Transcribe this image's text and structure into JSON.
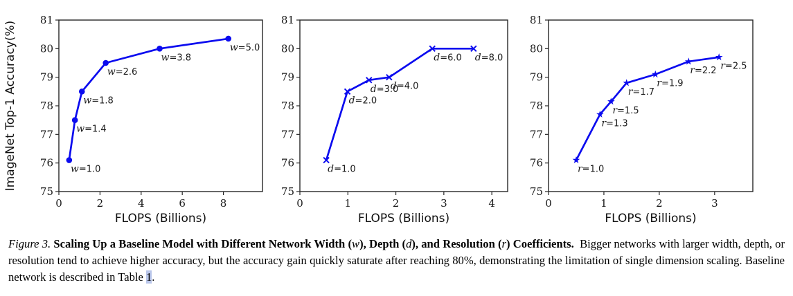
{
  "style": {
    "line_color": "#0b0bef",
    "axis_color": "#262626",
    "text_color": "#1a1a1a",
    "link_highlight": "#b9c6ea"
  },
  "chart_data": [
    {
      "id": "width-scaling",
      "type": "line",
      "coeff_letter": "w",
      "marker": "circle",
      "title": "",
      "xlabel": "FLOPS (Billions)",
      "ylabel": "ImageNet Top-1 Accuracy(%)",
      "xlim": [
        0,
        9.9
      ],
      "ylim": [
        75,
        81
      ],
      "xticks": [
        0,
        2,
        4,
        6,
        8
      ],
      "yticks": [
        75,
        76,
        77,
        78,
        79,
        80,
        81
      ],
      "grid": false,
      "points": [
        {
          "x": 0.5,
          "y": 76.1,
          "coeff_value": "1.0"
        },
        {
          "x": 0.78,
          "y": 77.5,
          "coeff_value": "1.4"
        },
        {
          "x": 1.12,
          "y": 78.5,
          "coeff_value": "1.8"
        },
        {
          "x": 2.28,
          "y": 79.5,
          "coeff_value": "2.6"
        },
        {
          "x": 4.9,
          "y": 80.0,
          "coeff_value": "3.8"
        },
        {
          "x": 8.24,
          "y": 80.35,
          "coeff_value": "5.0"
        }
      ]
    },
    {
      "id": "depth-scaling",
      "type": "line",
      "coeff_letter": "d",
      "marker": "x",
      "title": "",
      "xlabel": "FLOPS (Billions)",
      "ylabel": "",
      "xlim": [
        0,
        4.33
      ],
      "ylim": [
        75,
        81
      ],
      "xticks": [
        0,
        1,
        2,
        3,
        4
      ],
      "yticks": [
        75,
        76,
        77,
        78,
        79,
        80,
        81
      ],
      "grid": false,
      "points": [
        {
          "x": 0.55,
          "y": 76.1,
          "coeff_value": "1.0"
        },
        {
          "x": 0.99,
          "y": 78.5,
          "coeff_value": "2.0"
        },
        {
          "x": 1.44,
          "y": 78.9,
          "coeff_value": "3.0"
        },
        {
          "x": 1.86,
          "y": 79.0,
          "coeff_value": "4.0"
        },
        {
          "x": 2.76,
          "y": 80.0,
          "coeff_value": "6.0"
        },
        {
          "x": 3.62,
          "y": 80.0,
          "coeff_value": "8.0"
        }
      ]
    },
    {
      "id": "resolution-scaling",
      "type": "line",
      "coeff_letter": "r",
      "marker": "star",
      "title": "",
      "xlabel": "FLOPS (Billions)",
      "ylabel": "",
      "xlim": [
        0,
        3.69
      ],
      "ylim": [
        75,
        81
      ],
      "xticks": [
        0,
        1,
        2,
        3
      ],
      "yticks": [
        75,
        76,
        77,
        78,
        79,
        80,
        81
      ],
      "grid": false,
      "points": [
        {
          "x": 0.5,
          "y": 76.1,
          "coeff_value": "1.0"
        },
        {
          "x": 0.93,
          "y": 77.7,
          "coeff_value": "1.3"
        },
        {
          "x": 1.13,
          "y": 78.15,
          "coeff_value": "1.5"
        },
        {
          "x": 1.41,
          "y": 78.8,
          "coeff_value": "1.7"
        },
        {
          "x": 1.93,
          "y": 79.1,
          "coeff_value": "1.9"
        },
        {
          "x": 2.53,
          "y": 79.55,
          "coeff_value": "2.2"
        },
        {
          "x": 3.08,
          "y": 79.7,
          "coeff_value": "2.5"
        }
      ]
    }
  ],
  "caption": {
    "segments": [
      {
        "t": "Figure 3.",
        "s": "i"
      },
      {
        "t": " ",
        "s": "r"
      },
      {
        "t": "Scaling Up a Baseline Model with Different Network Width (",
        "s": "b"
      },
      {
        "t": "w",
        "s": "im"
      },
      {
        "t": "), Depth (",
        "s": "b"
      },
      {
        "t": "d",
        "s": "im"
      },
      {
        "t": "), and Resolution (",
        "s": "b"
      },
      {
        "t": "r",
        "s": "im"
      },
      {
        "t": ") Coefficients.",
        "s": "b"
      },
      {
        "t": " Bigger networks with larger width, depth, or resolution tend to achieve higher accuracy, but the accuracy gain quickly saturate after reaching 80%, demonstrating the limitation of single dimension scaling. Baseline network is described in Table ",
        "s": "r"
      },
      {
        "t": "1",
        "s": "link"
      },
      {
        "t": ".",
        "s": "r"
      }
    ]
  }
}
